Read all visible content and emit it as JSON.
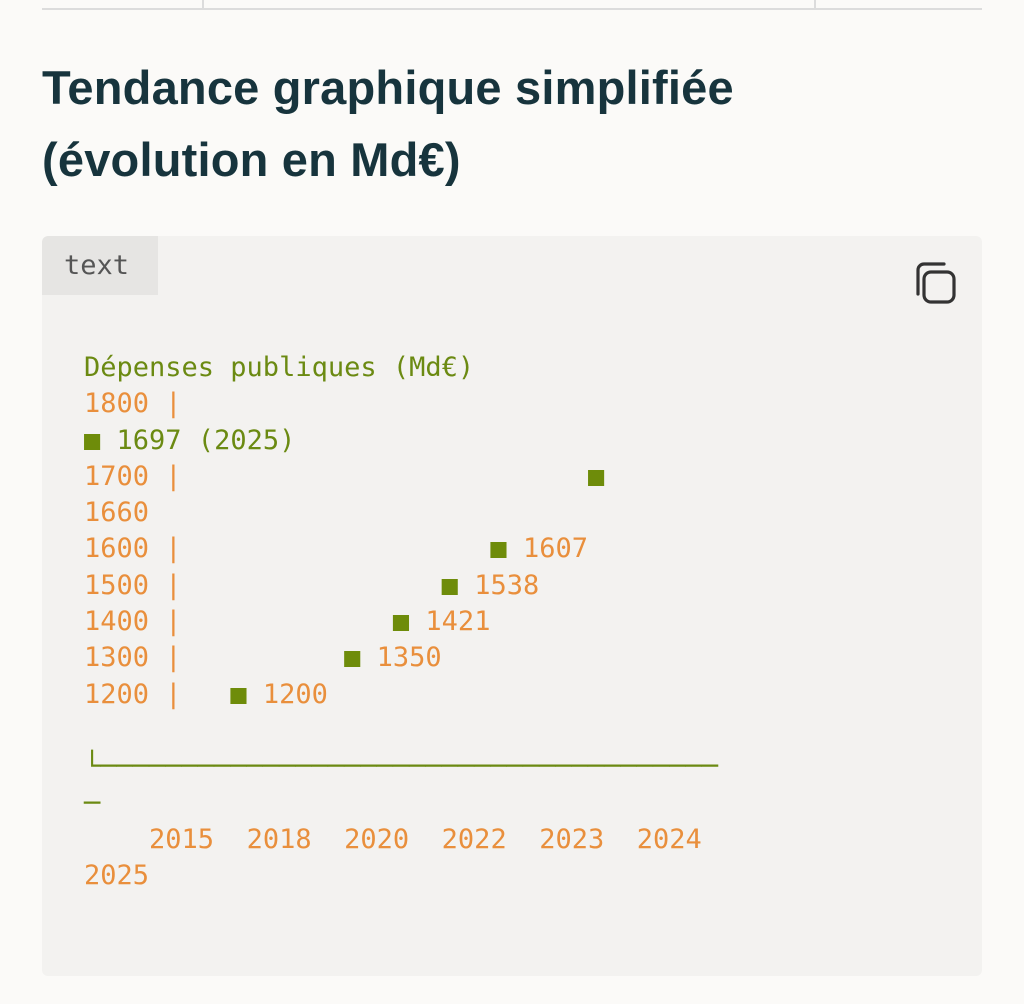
{
  "heading": {
    "line1": "Tendance graphique simplifiée",
    "line2": "(évolution en Md€)"
  },
  "code_block": {
    "language": "text",
    "copy_icon": "copy-icon",
    "title": "Dépenses publiques (Md€)",
    "y_labels": [
      "1800",
      "1700",
      "1660",
      "1600",
      "1500",
      "1400",
      "1300",
      "1200"
    ],
    "highlight_label": "1697 (2025)",
    "point_labels": [
      "1200",
      "1350",
      "1421",
      "1538",
      "1607"
    ],
    "x_labels": [
      "2015",
      "2018",
      "2020",
      "2022",
      "2023",
      "2024",
      "2025"
    ],
    "marker": "■",
    "axis_sep": "|"
  },
  "chart_data": {
    "type": "scatter",
    "title": "Dépenses publiques (Md€)",
    "xlabel": "",
    "ylabel": "Md€",
    "x": [
      "2015",
      "2018",
      "2020",
      "2022",
      "2023",
      "2024",
      "2025"
    ],
    "y_ticks": [
      1800,
      1700,
      1660,
      1600,
      1500,
      1400,
      1300,
      1200
    ],
    "labeled_points": [
      {
        "value": 1200
      },
      {
        "value": 1350
      },
      {
        "value": 1421
      },
      {
        "value": 1538
      },
      {
        "value": 1607
      },
      {
        "value": 1697,
        "year": "2025"
      }
    ]
  },
  "colors": {
    "heading": "#17343d",
    "number_orange": "#e98f3c",
    "marker_green": "#6e8c0a",
    "code_bg": "#f3f2f0"
  }
}
